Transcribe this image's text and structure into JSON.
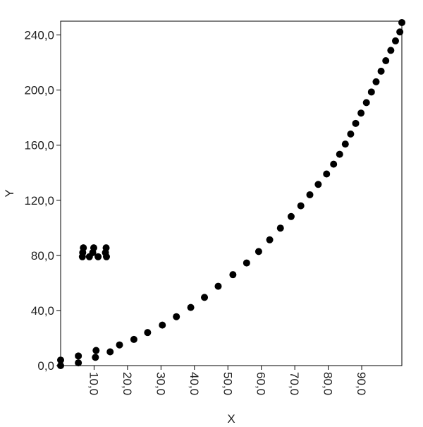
{
  "chart_data": {
    "type": "scatter",
    "xlabel": "X",
    "ylabel": "Y",
    "xlim": [
      0,
      102
    ],
    "ylim": [
      0,
      250
    ],
    "x_ticks": [
      10,
      20,
      30,
      40,
      50,
      60,
      70,
      80,
      90
    ],
    "x_tick_labels": [
      "10,0",
      "20,0",
      "30,0",
      "40,0",
      "50,0",
      "60,0",
      "70,0",
      "80,0",
      "90,0"
    ],
    "y_ticks": [
      0,
      40,
      80,
      120,
      160,
      200,
      240
    ],
    "y_tick_labels": [
      "0,0",
      "40,0",
      "80,0",
      "120,0",
      "160,0",
      "200,0",
      "240,0"
    ],
    "grid": false,
    "legend": "none",
    "marker_color": "#000000",
    "series": [
      {
        "points": [
          [
            0.0,
            4.0
          ],
          [
            0.0,
            0.0
          ],
          [
            5.3,
            2.0
          ],
          [
            5.3,
            7.0
          ],
          [
            10.4,
            6.0
          ],
          [
            10.6,
            11.0
          ],
          [
            14.8,
            10.0
          ],
          [
            17.6,
            15.0
          ],
          [
            21.9,
            19.0
          ],
          [
            26.0,
            24.0
          ],
          [
            30.4,
            29.4
          ],
          [
            34.6,
            35.5
          ],
          [
            38.9,
            42.2
          ],
          [
            43.0,
            49.5
          ],
          [
            47.1,
            57.6
          ],
          [
            51.5,
            66.0
          ],
          [
            55.6,
            74.5
          ],
          [
            59.2,
            82.8
          ],
          [
            62.5,
            91.3
          ],
          [
            65.7,
            99.8
          ],
          [
            68.9,
            108.2
          ],
          [
            71.8,
            116.0
          ],
          [
            74.5,
            124.0
          ],
          [
            77.0,
            131.5
          ],
          [
            79.5,
            139.1
          ],
          [
            81.6,
            146.2
          ],
          [
            83.4,
            153.4
          ],
          [
            85.1,
            160.8
          ],
          [
            86.7,
            168.1
          ],
          [
            88.2,
            175.8
          ],
          [
            89.8,
            183.3
          ],
          [
            91.4,
            190.9
          ],
          [
            92.9,
            198.6
          ],
          [
            94.3,
            206.0
          ],
          [
            95.8,
            213.7
          ],
          [
            97.2,
            221.3
          ],
          [
            98.7,
            228.8
          ],
          [
            100.1,
            235.7
          ],
          [
            101.4,
            242.2
          ],
          [
            102.0,
            249.0
          ],
          [
            6.5,
            79.0
          ],
          [
            6.6,
            82.0
          ],
          [
            6.8,
            85.5
          ],
          [
            8.6,
            79.0
          ],
          [
            9.6,
            82.0
          ],
          [
            9.9,
            85.5
          ],
          [
            11.2,
            79.0
          ],
          [
            13.4,
            82.0
          ],
          [
            13.6,
            85.5
          ],
          [
            13.7,
            79.0
          ]
        ]
      }
    ]
  }
}
